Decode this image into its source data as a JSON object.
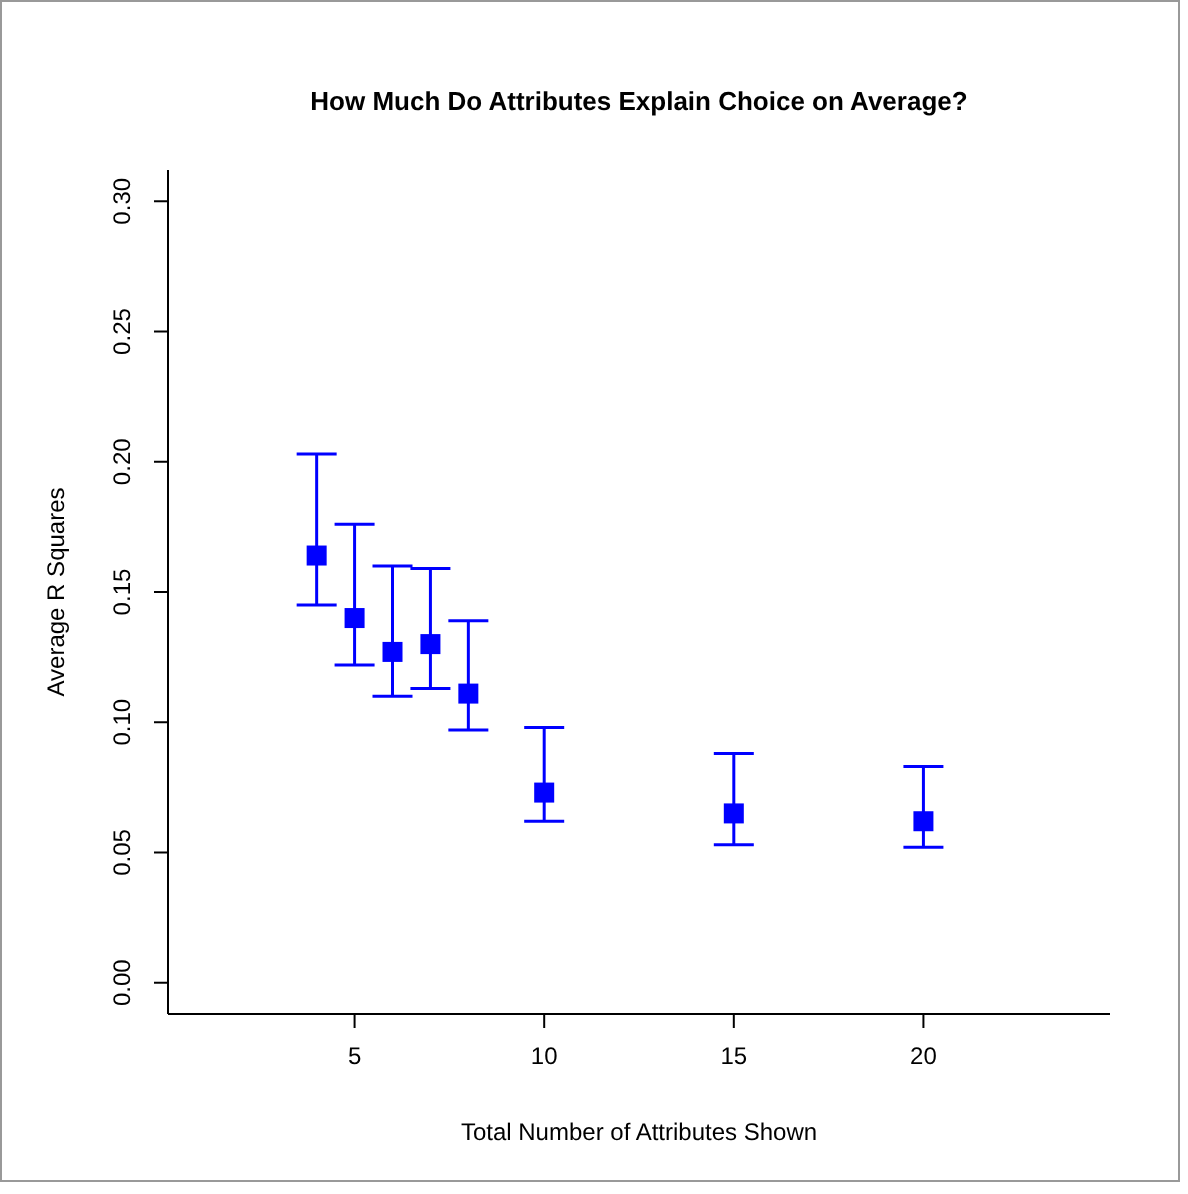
{
  "chart_data": {
    "type": "scatter",
    "title": "How Much Do Attributes Explain Choice on Average?",
    "xlabel": "Total Number of Attributes Shown",
    "ylabel": "Average R Squares",
    "x": [
      4,
      5,
      6,
      7,
      8,
      10,
      15,
      20
    ],
    "series": [
      {
        "color": "#0000ff",
        "values": [
          0.164,
          0.14,
          0.127,
          0.13,
          0.111,
          0.073,
          0.065,
          0.062
        ],
        "errors": [
          [
            0.145,
            0.203
          ],
          [
            0.122,
            0.176
          ],
          [
            0.11,
            0.16
          ],
          [
            0.113,
            0.159
          ],
          [
            0.097,
            0.139
          ],
          [
            0.062,
            0.098
          ],
          [
            0.053,
            0.088
          ],
          [
            0.052,
            0.083
          ]
        ]
      }
    ],
    "xlim": [
      0.08,
      24.92
    ],
    "xticks": [
      5,
      10,
      15,
      20
    ],
    "ylim": [
      -0.012,
      0.312
    ],
    "yticks": [
      {
        "value": 0,
        "label": "0.00"
      },
      0.05,
      {
        "value": 0.1,
        "label": "0.10"
      },
      0.15,
      {
        "value": 0.2,
        "label": "0.20"
      },
      0.25,
      {
        "value": 0.3,
        "label": "0.30"
      }
    ],
    "marker": "square",
    "grid": false,
    "legend": false
  }
}
